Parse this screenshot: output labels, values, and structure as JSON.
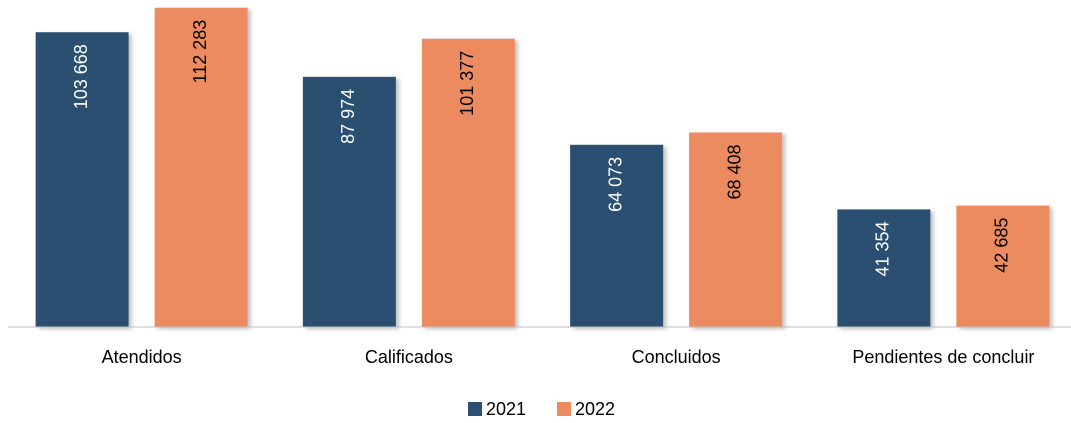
{
  "chart_data": {
    "type": "bar",
    "categories": [
      "Atendidos",
      "Calificados",
      "Concluidos",
      "Pendientes de concluir"
    ],
    "series": [
      {
        "name": "2021",
        "color": "#2c5071",
        "label_color": "#ffffff",
        "values": [
          103668,
          87974,
          64073,
          41354
        ],
        "value_labels": [
          "103 668",
          "87 974",
          "64 073",
          "41 354"
        ]
      },
      {
        "name": "2022",
        "color": "#eb8b5e",
        "label_color": "#000000",
        "values": [
          112283,
          101377,
          68408,
          42685
        ],
        "value_labels": [
          "112 283",
          "101 377",
          "68 408",
          "42 685"
        ]
      }
    ],
    "ylim": [
      0,
      115000
    ]
  }
}
